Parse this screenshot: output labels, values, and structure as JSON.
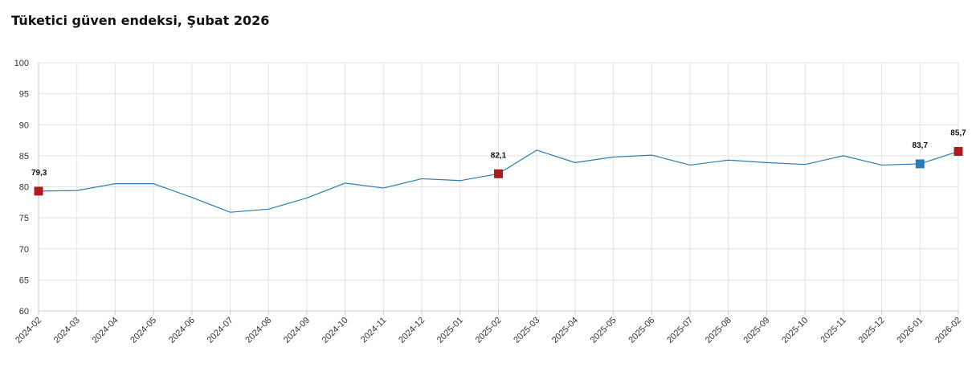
{
  "chart_data": {
    "type": "line",
    "title": "Tüketici güven endeksi, Şubat 2026",
    "xlabel": "",
    "ylabel": "",
    "ylim": [
      60,
      100
    ],
    "yticks": [
      60,
      65,
      70,
      75,
      80,
      85,
      90,
      95,
      100
    ],
    "grid": true,
    "categories": [
      "2024-02",
      "2024-03",
      "2024-04",
      "2024-05",
      "2024-06",
      "2024-07",
      "2024-08",
      "2024-09",
      "2024-10",
      "2024-11",
      "2024-12",
      "2025-01",
      "2025-02",
      "2025-03",
      "2025-04",
      "2025-05",
      "2025-06",
      "2025-07",
      "2025-08",
      "2025-09",
      "2025-10",
      "2025-11",
      "2025-12",
      "2026-01",
      "2026-02"
    ],
    "series": [
      {
        "values": [
          79.3,
          79.4,
          80.5,
          80.5,
          78.3,
          75.9,
          76.4,
          78.2,
          80.6,
          79.8,
          81.3,
          81.0,
          82.1,
          85.9,
          83.9,
          84.8,
          85.1,
          83.5,
          84.3,
          83.9,
          83.6,
          85.0,
          83.5,
          83.7,
          85.7
        ],
        "color": "#2e7bb4"
      }
    ],
    "highlights": [
      {
        "category": "2024-02",
        "value": 79.3,
        "label": "79,3",
        "color": "#b0191e"
      },
      {
        "category": "2025-02",
        "value": 82.1,
        "label": "82,1",
        "color": "#b0191e"
      },
      {
        "category": "2026-01",
        "value": 83.7,
        "label": "83,7",
        "color": "#2e7bb4"
      },
      {
        "category": "2026-02",
        "value": 85.7,
        "label": "85,7",
        "color": "#b0191e"
      }
    ],
    "colors": {
      "grid": "#e3e3e3",
      "axis": "#cccccc"
    }
  }
}
